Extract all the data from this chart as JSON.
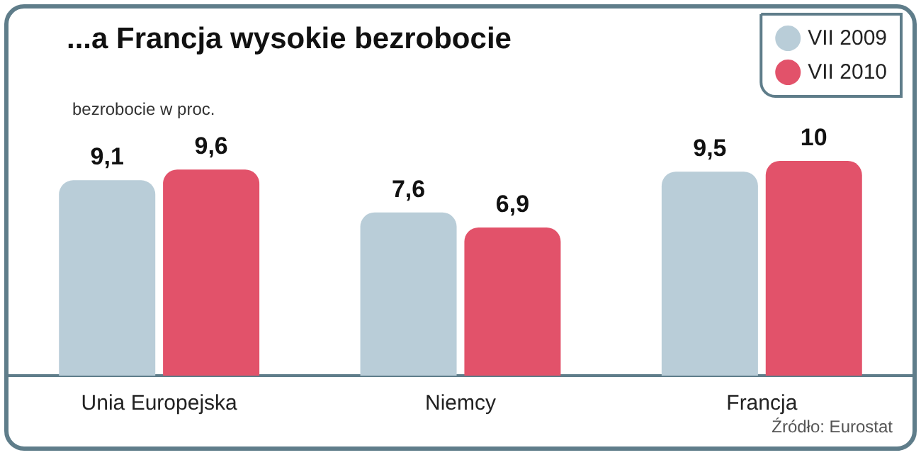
{
  "chart_data": {
    "type": "bar",
    "title": "...a Francja wysokie bezrobocie",
    "subtitle": "bezrobocie w proc.",
    "categories": [
      "Unia Europejska",
      "Niemcy",
      "Francja"
    ],
    "series": [
      {
        "name": "VII 2009",
        "color": "#b9cdd8",
        "values": [
          9.1,
          7.6,
          9.5
        ],
        "value_labels": [
          "9,1",
          "7,6",
          "9,5"
        ]
      },
      {
        "name": "VII 2010",
        "color": "#e2526a",
        "values": [
          9.6,
          6.9,
          10
        ],
        "value_labels": [
          "9,6",
          "6,9",
          "10"
        ]
      }
    ],
    "legend": "top right",
    "grid": false,
    "annotations": [
      "Źródło: Eurostat"
    ]
  }
}
